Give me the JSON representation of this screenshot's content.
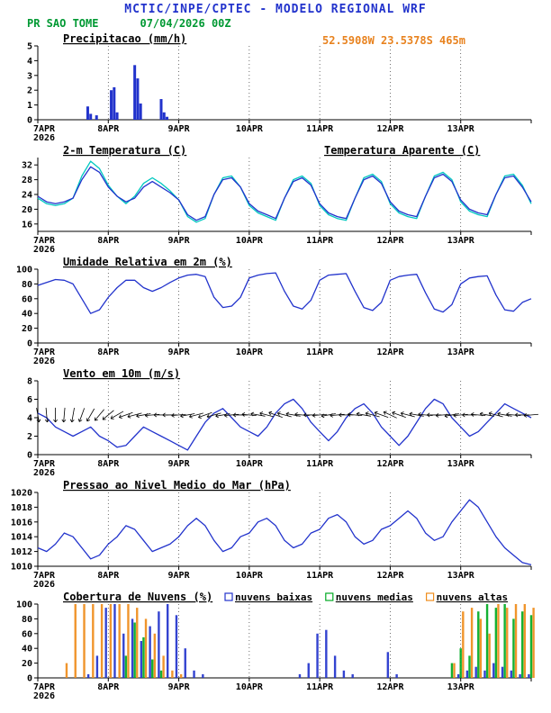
{
  "header": {
    "title": "MCTIC/INPE/CPTEC - MODELO REGIONAL WRF",
    "station": "PR SAO TOME",
    "run": "07/04/2026 00Z",
    "coords": "52.5908W 23.5378S 465m"
  },
  "colors": {
    "blue": "#2233cc",
    "green": "#009933",
    "orange": "#e8821e",
    "cyan": "#00c8c0",
    "cloud_green": "#00aa22",
    "cloud_orange": "#ef8c1a"
  },
  "x_axis": {
    "labels": [
      "7APR",
      "8APR",
      "9APR",
      "10APR",
      "11APR",
      "12APR",
      "13APR"
    ],
    "year": "2026",
    "hours_total": 168,
    "day_hours": [
      0,
      24,
      48,
      72,
      96,
      120,
      144
    ]
  },
  "chart_data": [
    {
      "name": "precipitation",
      "title": "Precipitacao (mm/h)",
      "type": "bar",
      "ylim": [
        0,
        5
      ],
      "yticks": [
        0,
        1,
        2,
        3,
        4,
        5
      ],
      "bar_color": "#2233cc",
      "bars": [
        [
          17,
          0.9
        ],
        [
          18,
          0.4
        ],
        [
          20,
          0.3
        ],
        [
          25,
          2.0
        ],
        [
          26,
          2.2
        ],
        [
          27,
          0.5
        ],
        [
          33,
          3.7
        ],
        [
          34,
          2.8
        ],
        [
          35,
          1.1
        ],
        [
          42,
          1.4
        ],
        [
          43,
          0.5
        ],
        [
          44,
          0.2
        ]
      ]
    },
    {
      "name": "temperature-2m",
      "title": "2-m Temperatura (C)",
      "right_label": "Temperatura Aparente (C)",
      "right_label_color": "#00c8c0",
      "type": "line",
      "ylim": [
        14,
        34
      ],
      "yticks": [
        16,
        20,
        24,
        28,
        32
      ],
      "x_step": 3,
      "series": [
        {
          "name": "temperatura",
          "color": "#2233cc",
          "values": [
            23.5,
            22,
            21.5,
            22,
            23,
            28,
            31.5,
            30,
            26,
            23.5,
            22,
            23,
            26,
            27.5,
            26,
            24.5,
            22.5,
            18.5,
            17,
            18,
            24,
            28,
            28.5,
            26,
            21.5,
            19.5,
            18.5,
            17.5,
            23,
            27.5,
            28.5,
            26.5,
            21.5,
            19,
            18,
            17.5,
            23,
            28,
            29,
            27,
            22,
            19.5,
            18.5,
            18,
            23.5,
            28.5,
            29.5,
            27.5,
            22.5,
            20,
            19,
            18.5,
            24,
            28.5,
            29,
            26,
            22
          ]
        },
        {
          "name": "temperatura aparente",
          "color": "#00c8c0",
          "values": [
            23,
            21.5,
            21,
            21.5,
            23,
            29,
            33,
            31,
            26.5,
            23.5,
            21.5,
            23.5,
            27,
            28.5,
            27,
            25,
            22.5,
            18,
            16.5,
            17.5,
            24,
            28.5,
            29,
            26,
            21,
            19,
            18,
            17,
            23,
            28,
            29,
            27,
            21,
            18.5,
            17.5,
            17,
            23,
            28.5,
            29.5,
            27.5,
            21.5,
            19,
            18,
            17.5,
            23.5,
            29,
            30,
            28,
            22,
            19.5,
            18.5,
            18,
            24,
            29,
            29.5,
            26.5,
            21.5
          ]
        }
      ]
    },
    {
      "name": "relative-humidity-2m",
      "title": "Umidade Relativa em 2m (%)",
      "type": "line",
      "ylim": [
        0,
        100
      ],
      "yticks": [
        0,
        20,
        40,
        60,
        80,
        100
      ],
      "x_step": 3,
      "series": [
        {
          "name": "umidade relativa",
          "color": "#2233cc",
          "values": [
            78,
            82,
            86,
            85,
            80,
            60,
            40,
            45,
            62,
            75,
            85,
            85,
            75,
            70,
            75,
            82,
            88,
            92,
            93,
            90,
            62,
            48,
            50,
            62,
            88,
            92,
            94,
            95,
            70,
            50,
            46,
            58,
            85,
            92,
            93,
            94,
            70,
            48,
            44,
            55,
            85,
            90,
            92,
            93,
            68,
            46,
            42,
            52,
            80,
            88,
            90,
            91,
            65,
            45,
            43,
            55,
            60
          ]
        }
      ]
    },
    {
      "name": "wind-10m",
      "title": "Vento em 10m (m/s)",
      "type": "line",
      "ylim": [
        0,
        8
      ],
      "yticks": [
        0,
        2,
        4,
        6,
        8
      ],
      "x_step": 3,
      "series": [
        {
          "name": "velocidade do vento",
          "color": "#2233cc",
          "values": [
            4.5,
            4,
            3,
            2.5,
            2,
            2.5,
            3,
            2,
            1.5,
            0.8,
            1,
            2,
            3,
            2.5,
            2,
            1.5,
            1,
            0.5,
            2,
            3.5,
            4.5,
            5,
            4,
            3,
            2.5,
            2,
            3,
            4.5,
            5.5,
            6,
            5,
            3.5,
            2.5,
            1.5,
            2.5,
            4,
            5,
            5.5,
            4.5,
            3,
            2,
            1,
            2,
            3.5,
            5,
            6,
            5.5,
            4,
            3,
            2,
            2.5,
            3.5,
            4.5,
            5.5,
            5,
            4.5,
            4
          ]
        }
      ],
      "barbs": {
        "anchor": 4.3,
        "color": "#000000",
        "dirs": [
          170,
          175,
          180,
          185,
          190,
          200,
          210,
          220,
          230,
          240,
          250,
          255,
          260,
          265,
          270,
          270,
          265,
          260,
          255,
          250,
          255,
          260,
          265,
          270,
          275,
          280,
          285,
          290,
          285,
          280,
          275,
          270,
          265,
          260,
          265,
          270,
          275,
          280,
          285,
          290,
          295,
          290,
          285,
          280,
          275,
          270,
          265,
          260,
          265,
          270,
          275,
          280,
          285,
          280,
          275,
          270,
          265
        ]
      }
    },
    {
      "name": "mslp",
      "title": "Pressao ao Nivel Medio do Mar (hPa)",
      "type": "line",
      "ylim": [
        1010,
        1020
      ],
      "yticks": [
        1010,
        1012,
        1014,
        1016,
        1018,
        1020
      ],
      "x_step": 3,
      "series": [
        {
          "name": "pressao",
          "color": "#2233cc",
          "values": [
            1012.5,
            1012,
            1013,
            1014.5,
            1014,
            1012.5,
            1011,
            1011.5,
            1013,
            1014,
            1015.5,
            1015,
            1013.5,
            1012,
            1012.5,
            1013,
            1014,
            1015.5,
            1016.5,
            1015.5,
            1013.5,
            1012,
            1012.5,
            1014,
            1014.5,
            1016,
            1016.5,
            1015.5,
            1013.5,
            1012.5,
            1013,
            1014.5,
            1015,
            1016.5,
            1017,
            1016,
            1014,
            1013,
            1013.5,
            1015,
            1015.5,
            1016.5,
            1017.5,
            1016.5,
            1014.5,
            1013.5,
            1014,
            1016,
            1017.5,
            1019,
            1018,
            1016,
            1014,
            1012.5,
            1011.5,
            1010.5,
            1010.2
          ]
        }
      ]
    },
    {
      "name": "cloud-cover",
      "title": "Cobertura de Nuvens (%)",
      "type": "grouped_bar",
      "ylim": [
        0,
        100
      ],
      "yticks": [
        0,
        20,
        40,
        60,
        80,
        100
      ],
      "x_step": 3,
      "legend": [
        {
          "label": "nuvens baixas",
          "color": "#2233cc"
        },
        {
          "label": "nuvens medias",
          "color": "#00aa22"
        },
        {
          "label": "nuvens altas",
          "color": "#ef8c1a"
        }
      ],
      "series": [
        {
          "name": "nuvens baixas",
          "color": "#2233cc",
          "values": [
            0,
            0,
            0,
            0,
            0,
            0,
            5,
            30,
            95,
            100,
            60,
            80,
            50,
            70,
            90,
            100,
            85,
            40,
            10,
            5,
            0,
            0,
            0,
            0,
            0,
            0,
            0,
            0,
            0,
            0,
            5,
            20,
            60,
            65,
            30,
            10,
            5,
            0,
            0,
            0,
            35,
            5,
            0,
            0,
            0,
            0,
            0,
            0,
            5,
            10,
            15,
            10,
            20,
            15,
            10,
            5,
            5
          ]
        },
        {
          "name": "nuvens medias",
          "color": "#00aa22",
          "values": [
            0,
            0,
            0,
            0,
            0,
            0,
            0,
            0,
            0,
            0,
            30,
            75,
            55,
            25,
            10,
            0,
            0,
            0,
            0,
            0,
            0,
            0,
            0,
            0,
            0,
            0,
            0,
            0,
            0,
            0,
            0,
            0,
            0,
            0,
            0,
            0,
            0,
            0,
            0,
            0,
            0,
            0,
            0,
            0,
            0,
            0,
            0,
            20,
            40,
            30,
            90,
            100,
            95,
            100,
            80,
            90,
            85
          ]
        },
        {
          "name": "nuvens altas",
          "color": "#ef8c1a",
          "values": [
            0,
            0,
            0,
            20,
            100,
            100,
            100,
            100,
            100,
            100,
            100,
            95,
            80,
            60,
            30,
            10,
            5,
            0,
            0,
            0,
            0,
            0,
            0,
            0,
            0,
            0,
            0,
            0,
            0,
            0,
            0,
            0,
            0,
            0,
            0,
            0,
            0,
            0,
            0,
            0,
            0,
            0,
            0,
            0,
            0,
            0,
            0,
            20,
            90,
            95,
            80,
            60,
            100,
            95,
            100,
            100,
            95
          ]
        }
      ]
    }
  ]
}
